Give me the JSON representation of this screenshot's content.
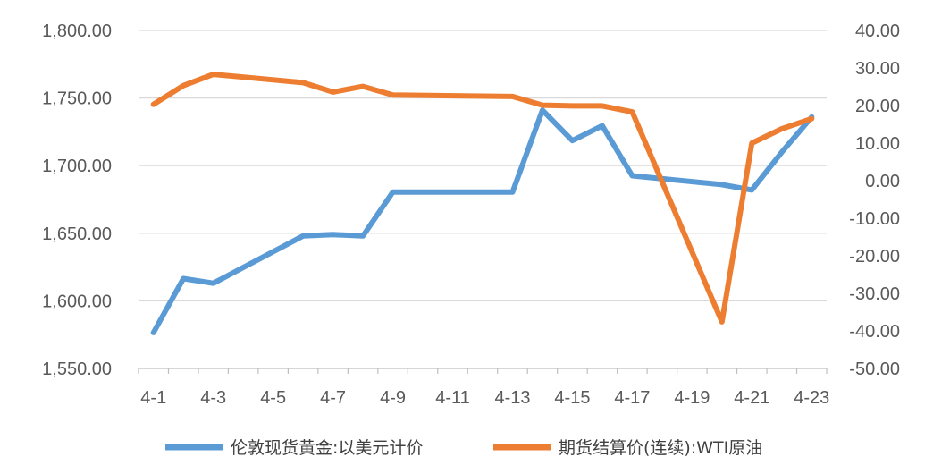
{
  "chart_data": {
    "type": "line",
    "categories": [
      "4-1",
      "4-2",
      "4-3",
      "4-4",
      "4-5",
      "4-6",
      "4-7",
      "4-8",
      "4-9",
      "4-10",
      "4-11",
      "4-12",
      "4-13",
      "4-14",
      "4-15",
      "4-16",
      "4-17",
      "4-18",
      "4-19",
      "4-20",
      "4-21",
      "4-22",
      "4-23"
    ],
    "x_tick_labels": [
      "4-1",
      "4-3",
      "4-5",
      "4-7",
      "4-9",
      "4-11",
      "4-13",
      "4-15",
      "4-17",
      "4-19",
      "4-21",
      "4-23"
    ],
    "y_left": {
      "ylim": [
        1550,
        1800
      ],
      "ticks": [
        "1,550.00",
        "1,600.00",
        "1,650.00",
        "1,700.00",
        "1,750.00",
        "1,800.00"
      ]
    },
    "y_right": {
      "ylim": [
        -50,
        40
      ],
      "ticks": [
        "-50.00",
        "-40.00",
        "-30.00",
        "-20.00",
        "-10.00",
        "0.00",
        "10.00",
        "20.00",
        "30.00",
        "40.00"
      ]
    },
    "series": [
      {
        "name": "伦敦现货黄金:以美元计价",
        "axis": "left",
        "color": "#5b9bd5",
        "x": [
          "4-1",
          "4-2",
          "4-3",
          "4-6",
          "4-7",
          "4-8",
          "4-9",
          "4-13",
          "4-14",
          "4-15",
          "4-16",
          "4-17",
          "4-20",
          "4-21",
          "4-22",
          "4-23"
        ],
        "values": [
          1576.5,
          1616.5,
          1613,
          1648,
          1649,
          1648,
          1680.5,
          1680.5,
          1741,
          1718.5,
          1729.5,
          1692.5,
          1686,
          1682,
          1710,
          1736
        ]
      },
      {
        "name": "期货结算价(连续):WTI原油",
        "axis": "right",
        "color": "#ed7d31",
        "x": [
          "4-1",
          "4-2",
          "4-3",
          "4-6",
          "4-7",
          "4-8",
          "4-9",
          "4-13",
          "4-14",
          "4-15",
          "4-16",
          "4-17",
          "4-20",
          "4-21",
          "4-22",
          "4-23"
        ],
        "values": [
          20.3,
          25.3,
          28.3,
          26.1,
          23.6,
          25.1,
          22.8,
          22.4,
          20.1,
          19.9,
          19.9,
          18.3,
          -37.6,
          10.0,
          13.8,
          16.5
        ]
      }
    ],
    "legend_position": "bottom",
    "grid": true
  }
}
